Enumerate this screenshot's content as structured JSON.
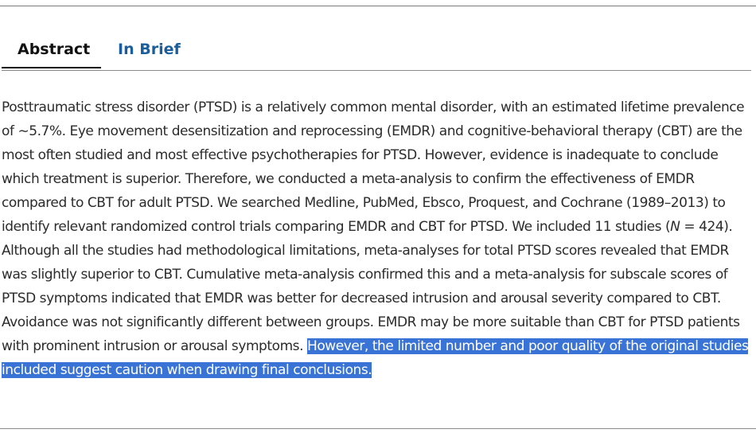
{
  "tabs": [
    {
      "label": "Abstract",
      "active": true
    },
    {
      "label": "In Brief",
      "active": false
    }
  ],
  "abstract": {
    "part1": "Posttraumatic stress disorder (PTSD) is a relatively common mental disorder, with an estimated lifetime prevalence of ∼5.7%. Eye movement desensitization and reprocessing (EMDR) and cognitive-behavioral therapy (CBT) are the most often studied and most effective psychotherapies for PTSD. However, evidence is inadequate to conclude which treatment is superior. Therefore, we conducted a meta-analysis to confirm the effectiveness of EMDR compared to CBT for adult PTSD. We searched Medline, PubMed, Ebsco, Proquest, and Cochrane (1989–2013) to identify relevant randomized control trials comparing EMDR and CBT for PTSD. We included 11 studies (",
    "n_symbol": "N",
    "part2": " = 424). Although all the studies had methodological limitations, meta-analyses for total PTSD scores revealed that EMDR was slightly superior to CBT. Cumulative meta-analysis confirmed this and a meta-analysis for subscale scores of PTSD symptoms indicated that EMDR was better for decreased intrusion and arousal severity compared to CBT. Avoidance was not significantly different between groups. EMDR may be more suitable than CBT for PTSD patients with prominent intrusion or arousal symptoms. ",
    "highlighted": "However, the limited number and poor quality of the original studies included suggest caution when drawing final conclusions."
  },
  "colors": {
    "tab_active": "#111111",
    "tab_link": "#1b5e9e",
    "selection_bg": "#3a73d6",
    "body_text": "#2b2b2b"
  }
}
